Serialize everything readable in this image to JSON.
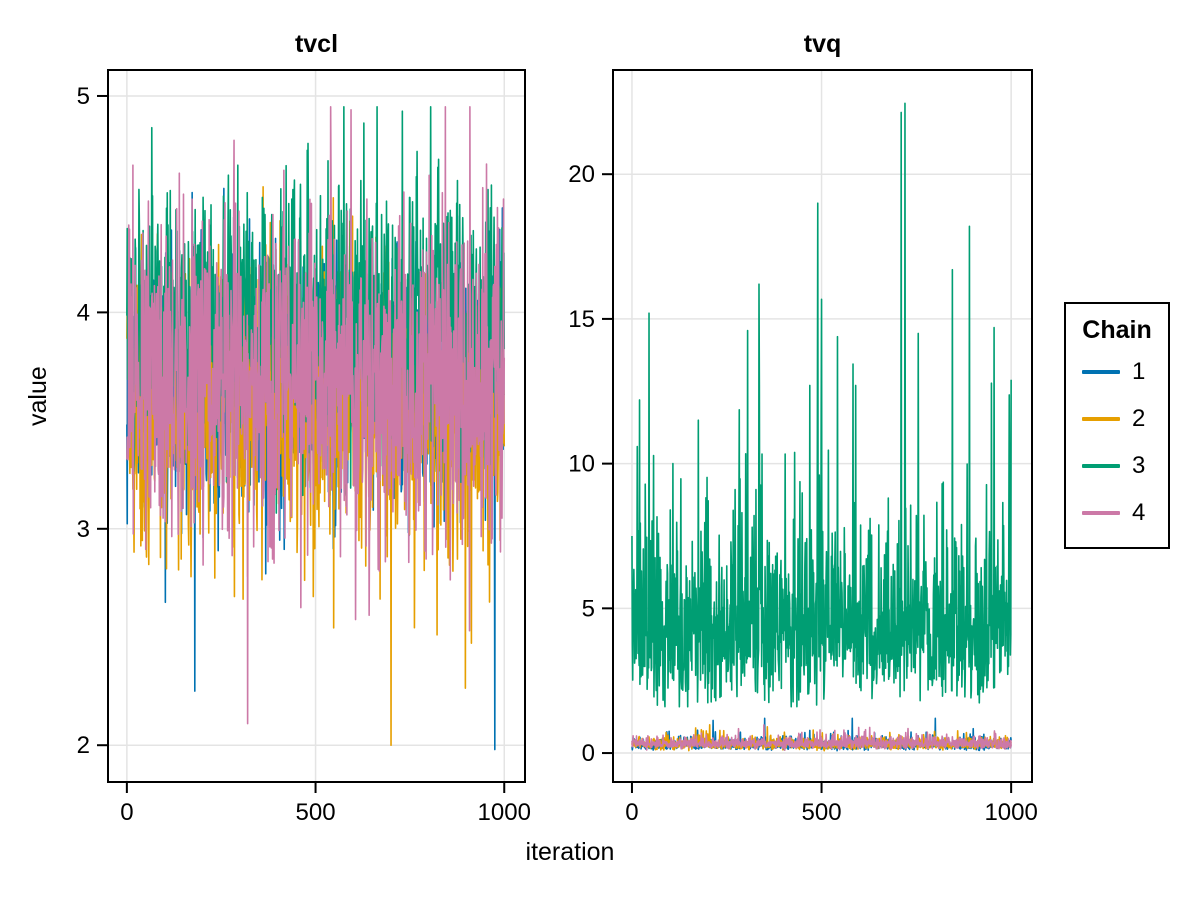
{
  "figure": {
    "xlabel": "iteration",
    "ylabel": "value",
    "background": "#ffffff"
  },
  "legend": {
    "title": "Chain",
    "entries": [
      {
        "label": "1",
        "color": "#0072B2"
      },
      {
        "label": "2",
        "color": "#E69F00"
      },
      {
        "label": "3",
        "color": "#009E73"
      },
      {
        "label": "4",
        "color": "#CC79A7"
      }
    ]
  },
  "chart_data": {
    "type": "line",
    "subtype": "mcmc-trace-plot",
    "x": {
      "label": "iteration",
      "min": 0,
      "max": 1000,
      "n_points": 1001
    },
    "legend_title": "Chain",
    "legend_position": "right",
    "grid": true,
    "styles": {
      "grid_color": "#e4e4e4",
      "spine_color": "#000000",
      "text_color": "#000000",
      "line_width": 1.6,
      "tick_len": 11,
      "tick_font_size": 24
    },
    "panels": [
      {
        "title": "tvcl",
        "ylabel": "value",
        "xlim": [
          -50,
          1055
        ],
        "ylim": [
          1.83,
          5.12
        ],
        "yticks": [
          2,
          3,
          4,
          5
        ],
        "xticks": [
          0,
          500,
          1000
        ],
        "series": [
          {
            "name": "1",
            "color": "#0072B2",
            "dist": "normal",
            "mean": 3.68,
            "sd": 0.3,
            "min": 1.98,
            "max": 4.62,
            "extremes": [
              [
                180,
                2.25
              ],
              [
                975,
                1.98
              ]
            ]
          },
          {
            "name": "2",
            "color": "#E69F00",
            "dist": "normal",
            "mean": 3.55,
            "sd": 0.33,
            "min": 2.0,
            "max": 4.58,
            "extremes": [
              [
                700,
                2.0
              ]
            ]
          },
          {
            "name": "3",
            "color": "#009E73",
            "dist": "normal",
            "mean": 3.97,
            "sd": 0.3,
            "min": 2.4,
            "max": 4.95,
            "extremes": [
              [
                575,
                4.95
              ],
              [
                730,
                4.93
              ]
            ]
          },
          {
            "name": "4",
            "color": "#CC79A7",
            "dist": "normal",
            "mean": 3.67,
            "sd": 0.37,
            "min": 2.09,
            "max": 4.95,
            "extremes": [
              [
                320,
                2.1
              ],
              [
                540,
                4.95
              ]
            ]
          }
        ]
      },
      {
        "title": "tvq",
        "ylabel": "value",
        "xlim": [
          -50,
          1055
        ],
        "ylim": [
          -1.0,
          23.6
        ],
        "yticks": [
          0,
          5,
          10,
          15,
          20
        ],
        "xticks": [
          0,
          500,
          1000
        ],
        "series": [
          {
            "name": "1",
            "color": "#0072B2",
            "dist": "lognormal",
            "median": 0.27,
            "log_sd": 0.4,
            "min": 0.08,
            "max": 1.2,
            "extremes": [
              [
                800,
                1.2
              ]
            ]
          },
          {
            "name": "2",
            "color": "#E69F00",
            "dist": "lognormal",
            "median": 0.3,
            "log_sd": 0.38,
            "min": 0.08,
            "max": 1.0,
            "extremes": []
          },
          {
            "name": "3",
            "color": "#009E73",
            "dist": "lognormal",
            "median": 4.3,
            "log_sd": 0.4,
            "min": 1.6,
            "max": 22.45,
            "extremes": [
              [
                20,
                12.2
              ],
              [
                45,
                15.2
              ],
              [
                175,
                11.5
              ],
              [
                305,
                14.6
              ],
              [
                335,
                16.2
              ],
              [
                490,
                19.0
              ],
              [
                590,
                12.7
              ],
              [
                720,
                22.45
              ],
              [
                755,
                14.5
              ],
              [
                845,
                16.7
              ],
              [
                890,
                18.2
              ],
              [
                955,
                14.7
              ],
              [
                1000,
                12.9
              ]
            ]
          },
          {
            "name": "4",
            "color": "#CC79A7",
            "dist": "lognormal",
            "median": 0.33,
            "log_sd": 0.35,
            "min": 0.1,
            "max": 1.1,
            "extremes": []
          }
        ]
      }
    ]
  }
}
